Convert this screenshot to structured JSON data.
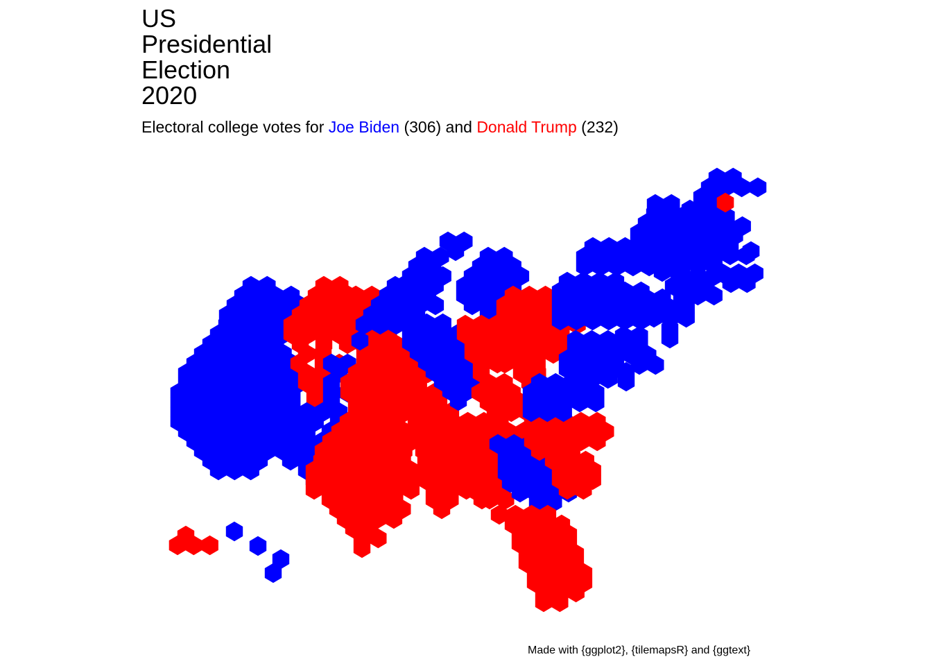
{
  "title_lines": [
    "US",
    "Presidential",
    "Election",
    "2020"
  ],
  "subtitle": {
    "prefix": "Electoral college votes for ",
    "biden_name": "Joe Biden",
    "biden_votes": " (306)",
    "middle": " and ",
    "trump_name": "Donald Trump",
    "trump_votes": " (232)"
  },
  "caption": "Made with {ggplot2}, {tilemapsR} and {ggtext}",
  "colors": {
    "biden": "#0000ff",
    "trump": "#ff0000",
    "border": "#ffffff"
  },
  "winners": {
    "WA": "biden",
    "OR": "biden",
    "CA": "biden",
    "ID": "trump",
    "NV": "biden",
    "MT": "trump",
    "WY": "trump",
    "UT": "trump",
    "AZ": "biden",
    "CO": "biden",
    "NM": "biden",
    "ND": "trump",
    "SD": "trump",
    "NE": "trump",
    "NE2": "biden",
    "KS": "trump",
    "OK": "trump",
    "TX": "trump",
    "MN": "biden",
    "IA": "trump",
    "MO": "trump",
    "AR": "trump",
    "LA": "trump",
    "WI": "biden",
    "IL": "biden",
    "MS": "trump",
    "MI": "biden",
    "IN": "trump",
    "KY": "trump",
    "TN": "trump",
    "AL": "trump",
    "OH": "trump",
    "WV": "trump",
    "GA": "biden",
    "FL": "trump",
    "SC": "trump",
    "NC": "trump",
    "VA": "biden",
    "PA": "biden",
    "NY": "biden",
    "NJ": "biden",
    "DE": "biden",
    "MD": "biden",
    "DC": "biden",
    "CT": "biden",
    "RI": "biden",
    "MA": "biden",
    "VT": "biden",
    "NH": "biden",
    "ME": "biden",
    "ME2": "trump",
    "AK": "trump",
    "HI": "biden"
  }
}
